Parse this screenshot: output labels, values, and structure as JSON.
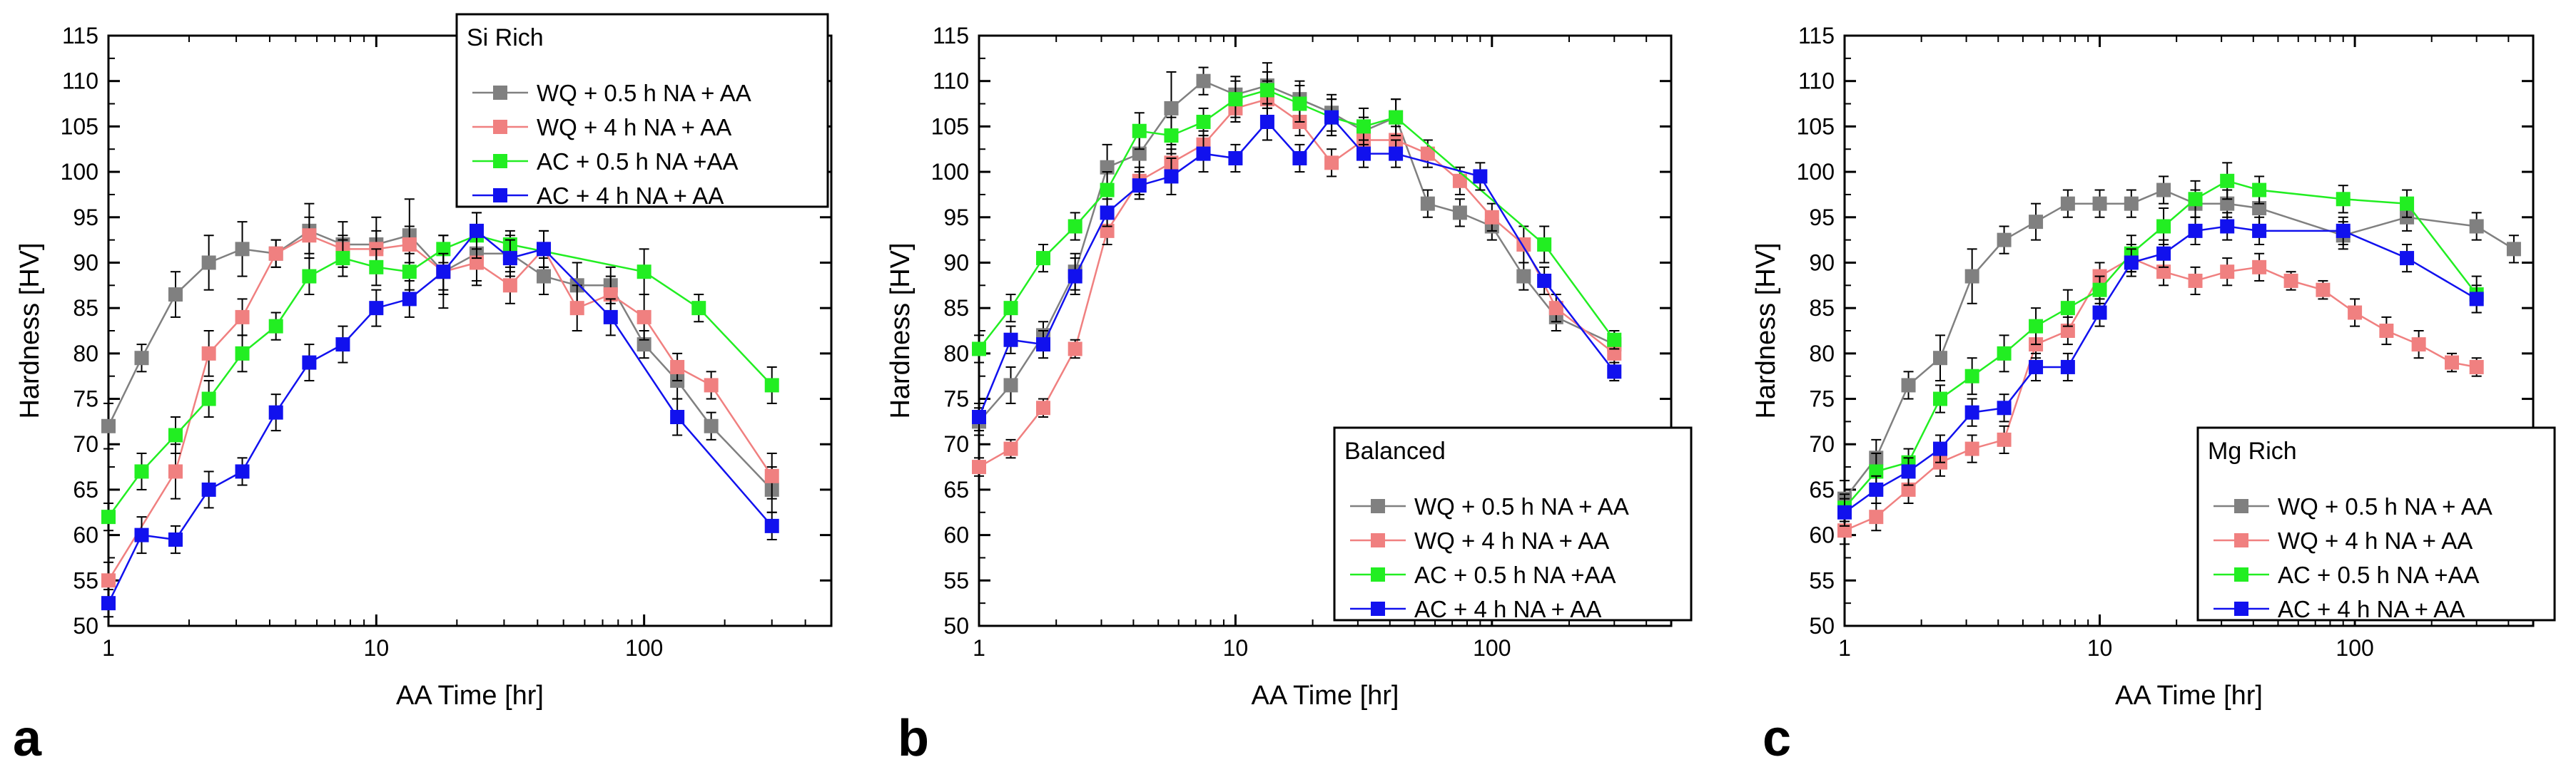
{
  "colors": {
    "wq05": "#808080",
    "wq4": "#f08080",
    "ac05": "#22ee22",
    "ac4": "#1111ee"
  },
  "chart_data": [
    {
      "type": "line",
      "panel_letter": "a",
      "title": "Si Rich",
      "legend_position": "top-right",
      "xlabel": "AA Time [hr]",
      "ylabel": "Hardness [HV]",
      "xscale": "log",
      "xlim": [
        1,
        500
      ],
      "ylim": [
        50,
        115
      ],
      "x_ticks": [
        "1",
        "10",
        "100"
      ],
      "y_ticks": [
        "50",
        "55",
        "60",
        "65",
        "70",
        "75",
        "80",
        "85",
        "90",
        "95",
        "100",
        "105",
        "110",
        "115"
      ],
      "series": [
        {
          "name": "WQ + 0.5 h NA + AA",
          "color": "#808080",
          "x": [
            1,
            1.33,
            1.78,
            2.37,
            3.16,
            4.22,
            5.62,
            7.5,
            10,
            13.3,
            17.8,
            23.7,
            31.6,
            42.2,
            56.2,
            75,
            100,
            133,
            178,
            300
          ],
          "y": [
            72,
            79.5,
            86.5,
            90,
            91.5,
            91,
            93.5,
            92,
            92,
            93,
            89,
            91,
            91,
            88.5,
            87.5,
            87.5,
            81,
            77,
            72,
            65
          ],
          "err": [
            2.5,
            1.5,
            2.5,
            3,
            3,
            1.5,
            3,
            2.5,
            3,
            4,
            4,
            3,
            2,
            2,
            2.5,
            2,
            1.5,
            2,
            1.5,
            2.5
          ]
        },
        {
          "name": "WQ + 4 h NA + AA",
          "color": "#f08080",
          "x": [
            1,
            1.78,
            2.37,
            3.16,
            4.22,
            5.62,
            7.5,
            10,
            13.3,
            17.8,
            23.7,
            31.6,
            42.2,
            56.2,
            75,
            100,
            133,
            178,
            300
          ],
          "y": [
            55,
            67,
            80,
            84,
            91,
            93,
            91.5,
            91.5,
            92,
            89,
            90,
            87.5,
            91.5,
            85,
            86.5,
            84,
            78.5,
            76.5,
            66.5
          ],
          "err": [
            2,
            3,
            2.5,
            2,
            1.5,
            2,
            1.5,
            2,
            2,
            2.5,
            2.5,
            2,
            2,
            2.5,
            2,
            2.5,
            1.5,
            1.5,
            2.5
          ]
        },
        {
          "name": "AC + 0.5 h NA +AA",
          "color": "#22ee22",
          "x": [
            1,
            1.33,
            1.78,
            2.37,
            3.16,
            4.22,
            5.62,
            7.5,
            10,
            13.3,
            17.8,
            23.7,
            31.6,
            100,
            160,
            300
          ],
          "y": [
            62,
            67,
            71,
            75,
            80,
            83,
            88.5,
            90.5,
            89.5,
            89,
            91.5,
            93,
            92,
            89,
            85,
            76.5
          ],
          "err": [
            1.5,
            2,
            2,
            2,
            2,
            1.5,
            2,
            2,
            2,
            2,
            1.5,
            2.5,
            1.5,
            2.5,
            1.5,
            2
          ]
        },
        {
          "name": "AC + 4 h NA + AA",
          "color": "#1111ee",
          "x": [
            1,
            1.33,
            1.78,
            2.37,
            3.16,
            4.22,
            5.62,
            7.5,
            10,
            13.3,
            17.8,
            23.7,
            31.6,
            42.2,
            75,
            133,
            300
          ],
          "y": [
            52.5,
            60,
            59.5,
            65,
            67,
            73.5,
            79,
            81,
            85,
            86,
            89,
            93.5,
            90.5,
            91.5,
            84,
            73,
            61
          ],
          "err": [
            1.5,
            2,
            1.5,
            2,
            1.5,
            2,
            2,
            2,
            2,
            2,
            2,
            2,
            2,
            2,
            2,
            2,
            1.5
          ]
        }
      ]
    },
    {
      "type": "line",
      "panel_letter": "b",
      "title": "Balanced",
      "legend_position": "bottom-right",
      "xlabel": "AA Time [hr]",
      "ylabel": "Hardness [HV]",
      "xscale": "log",
      "xlim": [
        1,
        500
      ],
      "ylim": [
        50,
        115
      ],
      "x_ticks": [
        "1",
        "10",
        "100"
      ],
      "y_ticks": [
        "50",
        "55",
        "60",
        "65",
        "70",
        "75",
        "80",
        "85",
        "90",
        "95",
        "100",
        "105",
        "110",
        "115"
      ],
      "series": [
        {
          "name": "WQ + 0.5 h NA + AA",
          "color": "#808080",
          "x": [
            1,
            1.33,
            1.78,
            2.37,
            3.16,
            4.22,
            5.62,
            7.5,
            10,
            13.3,
            17.8,
            23.7,
            31.6,
            42.2,
            56.2,
            75,
            100,
            133,
            178,
            300
          ],
          "y": [
            72.5,
            76.5,
            82,
            89,
            100.5,
            102,
            107,
            110,
            108.5,
            109.5,
            108,
            106.5,
            104.5,
            106,
            96.5,
            95.5,
            94,
            88.5,
            84,
            81
          ],
          "err": [
            1.5,
            2,
            1.5,
            2,
            2.5,
            3,
            4,
            1.5,
            2,
            2.5,
            2,
            2,
            1.5,
            2,
            1.5,
            1.5,
            1.5,
            1.5,
            1.5,
            1.5
          ]
        },
        {
          "name": "WQ + 4 h NA + AA",
          "color": "#f08080",
          "x": [
            1,
            1.33,
            1.78,
            2.37,
            3.16,
            4.22,
            5.62,
            7.5,
            10,
            13.3,
            17.8,
            23.7,
            31.6,
            42.2,
            56.2,
            75,
            100,
            133,
            178,
            300
          ],
          "y": [
            67.5,
            69.5,
            74,
            80.5,
            93.5,
            99,
            101,
            103,
            107,
            108,
            105.5,
            101,
            103.5,
            103.5,
            102,
            99,
            95,
            92,
            85,
            80
          ],
          "err": [
            1,
            1,
            1,
            1,
            1.5,
            1.5,
            1.5,
            1.5,
            1.5,
            2,
            1.5,
            1.5,
            1.5,
            1.5,
            1.5,
            1.5,
            1.5,
            2,
            1.5,
            1.5
          ]
        },
        {
          "name": "AC + 0.5 h NA +AA",
          "color": "#22ee22",
          "x": [
            1,
            1.33,
            1.78,
            2.37,
            3.16,
            4.22,
            5.62,
            7.5,
            10,
            13.3,
            17.8,
            23.7,
            31.6,
            42.2,
            160,
            300
          ],
          "y": [
            80.5,
            85,
            90.5,
            94,
            98,
            104.5,
            104,
            105.5,
            108,
            109,
            107.5,
            106,
            105,
            106,
            92,
            81.5
          ],
          "err": [
            1.5,
            1.5,
            1.5,
            1.5,
            2,
            2,
            2,
            1.5,
            2,
            2,
            2,
            2,
            2,
            2,
            2,
            1
          ]
        },
        {
          "name": "AC + 4 h NA + AA",
          "color": "#1111ee",
          "x": [
            1,
            1.33,
            1.78,
            2.37,
            3.16,
            4.22,
            5.62,
            7.5,
            10,
            13.3,
            17.8,
            23.7,
            31.6,
            42.2,
            90,
            160,
            300
          ],
          "y": [
            73,
            81.5,
            81,
            88.5,
            95.5,
            98.5,
            99.5,
            102,
            101.5,
            105.5,
            101.5,
            106,
            102,
            102,
            99.5,
            88,
            78
          ],
          "err": [
            1.5,
            1.5,
            1.5,
            2,
            1.5,
            1.5,
            2,
            2,
            1.5,
            2,
            1.5,
            2,
            1.5,
            1.5,
            1.5,
            1.5,
            1
          ]
        }
      ]
    },
    {
      "type": "line",
      "panel_letter": "c",
      "title": "Mg Rich",
      "legend_position": "bottom-right",
      "xlabel": "AA Time [hr]",
      "ylabel": "Hardness [HV]",
      "xscale": "log",
      "xlim": [
        1,
        500
      ],
      "ylim": [
        50,
        115
      ],
      "x_ticks": [
        "1",
        "10",
        "100"
      ],
      "y_ticks": [
        "50",
        "55",
        "60",
        "65",
        "70",
        "75",
        "80",
        "85",
        "90",
        "95",
        "100",
        "105",
        "110",
        "115"
      ],
      "series": [
        {
          "name": "WQ + 0.5 h NA + AA",
          "color": "#808080",
          "x": [
            1,
            1.33,
            1.78,
            2.37,
            3.16,
            4.22,
            5.62,
            7.5,
            10,
            13.3,
            17.8,
            23.7,
            31.6,
            42.2,
            90,
            160,
            300,
            420
          ],
          "y": [
            64,
            68.5,
            76.5,
            79.5,
            88.5,
            92.5,
            94.5,
            96.5,
            96.5,
            96.5,
            98,
            96.5,
            96.5,
            96,
            93,
            95,
            94,
            91.5
          ],
          "err": [
            2,
            2,
            1.5,
            2.5,
            3,
            1.5,
            2,
            1.5,
            1.5,
            1.5,
            1.5,
            1.5,
            1.5,
            2,
            1.5,
            1.5,
            1.5,
            1.5
          ]
        },
        {
          "name": "WQ + 4 h NA + AA",
          "color": "#f08080",
          "x": [
            1,
            1.33,
            1.78,
            2.37,
            3.16,
            4.22,
            5.62,
            7.5,
            10,
            13.3,
            17.8,
            23.7,
            31.6,
            42.2,
            56.2,
            75,
            100,
            133,
            178,
            240,
            300
          ],
          "y": [
            60.5,
            62,
            65,
            68,
            69.5,
            70.5,
            81,
            82.5,
            88.5,
            90.5,
            89,
            88,
            89,
            89.5,
            88,
            87,
            84.5,
            82.5,
            81,
            79,
            78.5
          ],
          "err": [
            1.5,
            1.5,
            1.5,
            1.5,
            1.5,
            1.5,
            1.5,
            1.5,
            1.5,
            1.5,
            1.5,
            1.5,
            1.5,
            1.5,
            1,
            1,
            1.5,
            1.5,
            1.5,
            1,
            1
          ]
        },
        {
          "name": "AC + 0.5 h NA +AA",
          "color": "#22ee22",
          "x": [
            1,
            1.33,
            1.78,
            2.37,
            3.16,
            4.22,
            5.62,
            7.5,
            10,
            13.3,
            17.8,
            23.7,
            31.6,
            42.2,
            90,
            160,
            300
          ],
          "y": [
            63,
            67,
            68,
            75,
            77.5,
            80,
            83,
            85,
            87,
            91,
            94,
            97,
            99,
            98,
            97,
            96.5,
            86.5
          ],
          "err": [
            1.5,
            2,
            1.5,
            1.5,
            2,
            2,
            2,
            2,
            1.5,
            2,
            2,
            2,
            2,
            1.5,
            1.5,
            1.5,
            2
          ]
        },
        {
          "name": "AC + 4 h NA + AA",
          "color": "#1111ee",
          "x": [
            1,
            1.33,
            1.78,
            2.37,
            3.16,
            4.22,
            5.62,
            7.5,
            10,
            13.3,
            17.8,
            23.7,
            31.6,
            42.2,
            90,
            160,
            300
          ],
          "y": [
            62.5,
            65,
            67,
            69.5,
            73.5,
            74,
            78.5,
            78.5,
            84.5,
            90,
            91,
            93.5,
            94,
            93.5,
            93.5,
            90.5,
            86
          ],
          "err": [
            1.5,
            1.5,
            1.5,
            1.5,
            1.5,
            1.5,
            1.5,
            1.5,
            1.5,
            1.5,
            1.5,
            1.5,
            1.5,
            1.5,
            1.5,
            1.5,
            1.5
          ]
        }
      ]
    }
  ]
}
